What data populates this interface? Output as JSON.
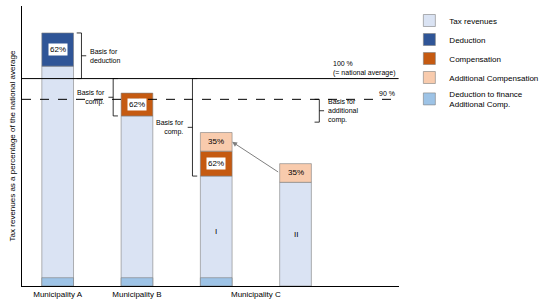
{
  "chart_data": {
    "type": "bar",
    "stacked": true,
    "tick_labels": "x",
    "legend": "right",
    "y_label": "Tax revenues as a percentage of the national average",
    "categories": [
      "Municipality A",
      "Municipality B",
      null,
      null
    ],
    "groups": [
      {
        "label": "Municipality C",
        "members": [
          2,
          3
        ]
      }
    ],
    "bar_labels": [
      null,
      null,
      "I",
      "II"
    ],
    "ylim": [
      0,
      135
    ],
    "series": [
      {
        "name": "Tax revenues",
        "color": "#dae3f3",
        "values": [
          106,
          82,
          53,
          50
        ]
      },
      {
        "name": "Deduction",
        "color": "#2f5597",
        "values": [
          16,
          null,
          null,
          null
        ],
        "labels": [
          "62%",
          null,
          null,
          null
        ]
      },
      {
        "name": "Compensation",
        "color": "#c55a11",
        "values": [
          null,
          11,
          12,
          null
        ],
        "labels": [
          null,
          "62%",
          "62%",
          null
        ]
      },
      {
        "name": "Additional Compensation",
        "color": "#f8cbad",
        "values": [
          null,
          null,
          9,
          9
        ],
        "labels": [
          null,
          null,
          "35%",
          "35%"
        ]
      },
      {
        "name": "Deduction to finance\nAdditional Comp.",
        "color": "#9dc3e6",
        "type": "overlay",
        "values": [
          4,
          4,
          4,
          null
        ]
      }
    ],
    "reference_lines": [
      {
        "value": 100,
        "label": "100 %\n(= national average)",
        "line_style": "solid"
      },
      {
        "value": 90,
        "label": "90 %",
        "line_style": "dashed"
      }
    ],
    "brackets": [
      {
        "category": 0,
        "from": 100,
        "to": 122,
        "label": "Basis for\ndeduction"
      },
      {
        "category": 1,
        "from": 82,
        "to": 100,
        "label": "Basis for\ncomp."
      },
      {
        "category": 2,
        "from": 53,
        "to": 100,
        "label": "Basis for\ncomp."
      },
      {
        "category": 3,
        "from": 79,
        "to": 90,
        "label": "Basis for\nadditional\ncomp."
      }
    ],
    "arrows": [
      {
        "series": "Additional Compensation",
        "from": 3,
        "to": 2
      }
    ]
  }
}
